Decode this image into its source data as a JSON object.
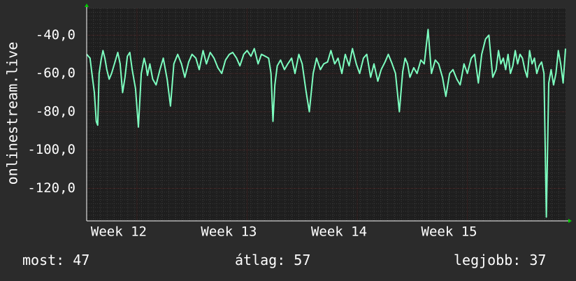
{
  "colors": {
    "background": "#2b2b2b",
    "plot_background": "#1e1e1e",
    "grid_major": "#4a2020",
    "grid_minor": "#3a3a3a",
    "line": "#7dffc0",
    "arrow": "#00cc00",
    "text": "#ffffff"
  },
  "chart_data": {
    "type": "line",
    "title": "",
    "ylabel": "onlinestream.live",
    "xlabel": "",
    "ylim": [
      -137,
      -26
    ],
    "xlim": [
      0,
      100
    ],
    "y_ticks": [
      -40,
      -60,
      -80,
      -100,
      -120
    ],
    "y_tick_labels": [
      "-40,0",
      "-60,0",
      "-80,0",
      "-100,0",
      "-120,0"
    ],
    "x_ticks": [
      10.5,
      33.5,
      56.5,
      79.5
    ],
    "x_tick_labels": [
      "Week 12",
      "Week 13",
      "Week 14",
      "Week 15"
    ],
    "grid": true,
    "series": [
      {
        "x": [
          0,
          0.7,
          1.2,
          1.6,
          2.0,
          2.3,
          2.6,
          3.0,
          3.4,
          3.8,
          4.2,
          4.7,
          5.2,
          5.8,
          6.5,
          7.0,
          7.5,
          8.0,
          8.5,
          9.0,
          9.5,
          10.2,
          10.8,
          11.4,
          12.0,
          12.4,
          12.7,
          13.2,
          13.8,
          14.5,
          15.3,
          16.0,
          16.8,
          17.5,
          18.2,
          19.0,
          19.8,
          20.5,
          21.3,
          22.0,
          22.8,
          23.5,
          24.3,
          25.0,
          25.8,
          26.6,
          27.4,
          28.2,
          29.0,
          29.8,
          30.5,
          31.3,
          32.0,
          32.8,
          33.5,
          34.3,
          35.0,
          35.8,
          36.5,
          37.3,
          38.0,
          38.5,
          38.9,
          39.3,
          39.8,
          40.5,
          41.3,
          42.0,
          42.8,
          43.5,
          44.3,
          45.0,
          45.8,
          46.5,
          47.3,
          48.0,
          48.8,
          49.5,
          50.3,
          51.0,
          51.8,
          52.5,
          53.3,
          54.0,
          54.8,
          55.5,
          56.3,
          57.0,
          57.8,
          58.5,
          59.3,
          60.0,
          60.8,
          61.5,
          62.3,
          63.0,
          63.8,
          64.5,
          65.3,
          66.0,
          66.5,
          67.0,
          67.5,
          68.3,
          69.0,
          69.8,
          70.5,
          71.3,
          72.0,
          72.8,
          73.5,
          74.3,
          75.0,
          75.8,
          76.5,
          77.3,
          78.0,
          78.8,
          79.5,
          80.3,
          81.0,
          81.8,
          82.5,
          83.3,
          84.0,
          84.8,
          85.5,
          86.0,
          86.5,
          87.0,
          87.5,
          88.0,
          88.5,
          89.0,
          89.5,
          90.0,
          90.5,
          91.0,
          91.5,
          92.0,
          92.5,
          93.0,
          93.5,
          94.0,
          94.5,
          95.0,
          95.5,
          96.0,
          96.5,
          97.0,
          97.5,
          98.0,
          98.5,
          99.0,
          99.5,
          100
        ],
        "values": [
          -50,
          -52,
          -62,
          -70,
          -85,
          -87,
          -60,
          -53,
          -48,
          -52,
          -58,
          -63,
          -60,
          -55,
          -49,
          -55,
          -70,
          -62,
          -51,
          -49,
          -58,
          -68,
          -88,
          -60,
          -52,
          -56,
          -61,
          -55,
          -63,
          -66,
          -58,
          -52,
          -63,
          -77,
          -55,
          -50,
          -55,
          -62,
          -54,
          -50,
          -52,
          -58,
          -48,
          -55,
          -49,
          -52,
          -57,
          -60,
          -53,
          -50,
          -49,
          -52,
          -56,
          -50,
          -48,
          -51,
          -47,
          -55,
          -50,
          -51,
          -52,
          -60,
          -85,
          -66,
          -56,
          -53,
          -58,
          -55,
          -52,
          -60,
          -50,
          -55,
          -69,
          -80,
          -60,
          -52,
          -58,
          -55,
          -54,
          -48,
          -55,
          -52,
          -60,
          -50,
          -56,
          -47,
          -55,
          -60,
          -52,
          -50,
          -62,
          -55,
          -64,
          -58,
          -54,
          -50,
          -55,
          -60,
          -80,
          -59,
          -52,
          -55,
          -62,
          -57,
          -60,
          -53,
          -55,
          -37,
          -60,
          -53,
          -55,
          -62,
          -72,
          -60,
          -58,
          -63,
          -66,
          -55,
          -60,
          -52,
          -50,
          -65,
          -50,
          -42,
          -40,
          -62,
          -58,
          -48,
          -55,
          -52,
          -58,
          -50,
          -60,
          -56,
          -48,
          -55,
          -50,
          -52,
          -58,
          -62,
          -48,
          -55,
          -52,
          -60,
          -56,
          -54,
          -60,
          -135,
          -65,
          -58,
          -66,
          -60,
          -48,
          -55,
          -65,
          -47
        ],
        "name": ""
      }
    ]
  },
  "stats": {
    "current": "most: 47",
    "average": "átlag: 57",
    "best": "legjobb: 37"
  }
}
